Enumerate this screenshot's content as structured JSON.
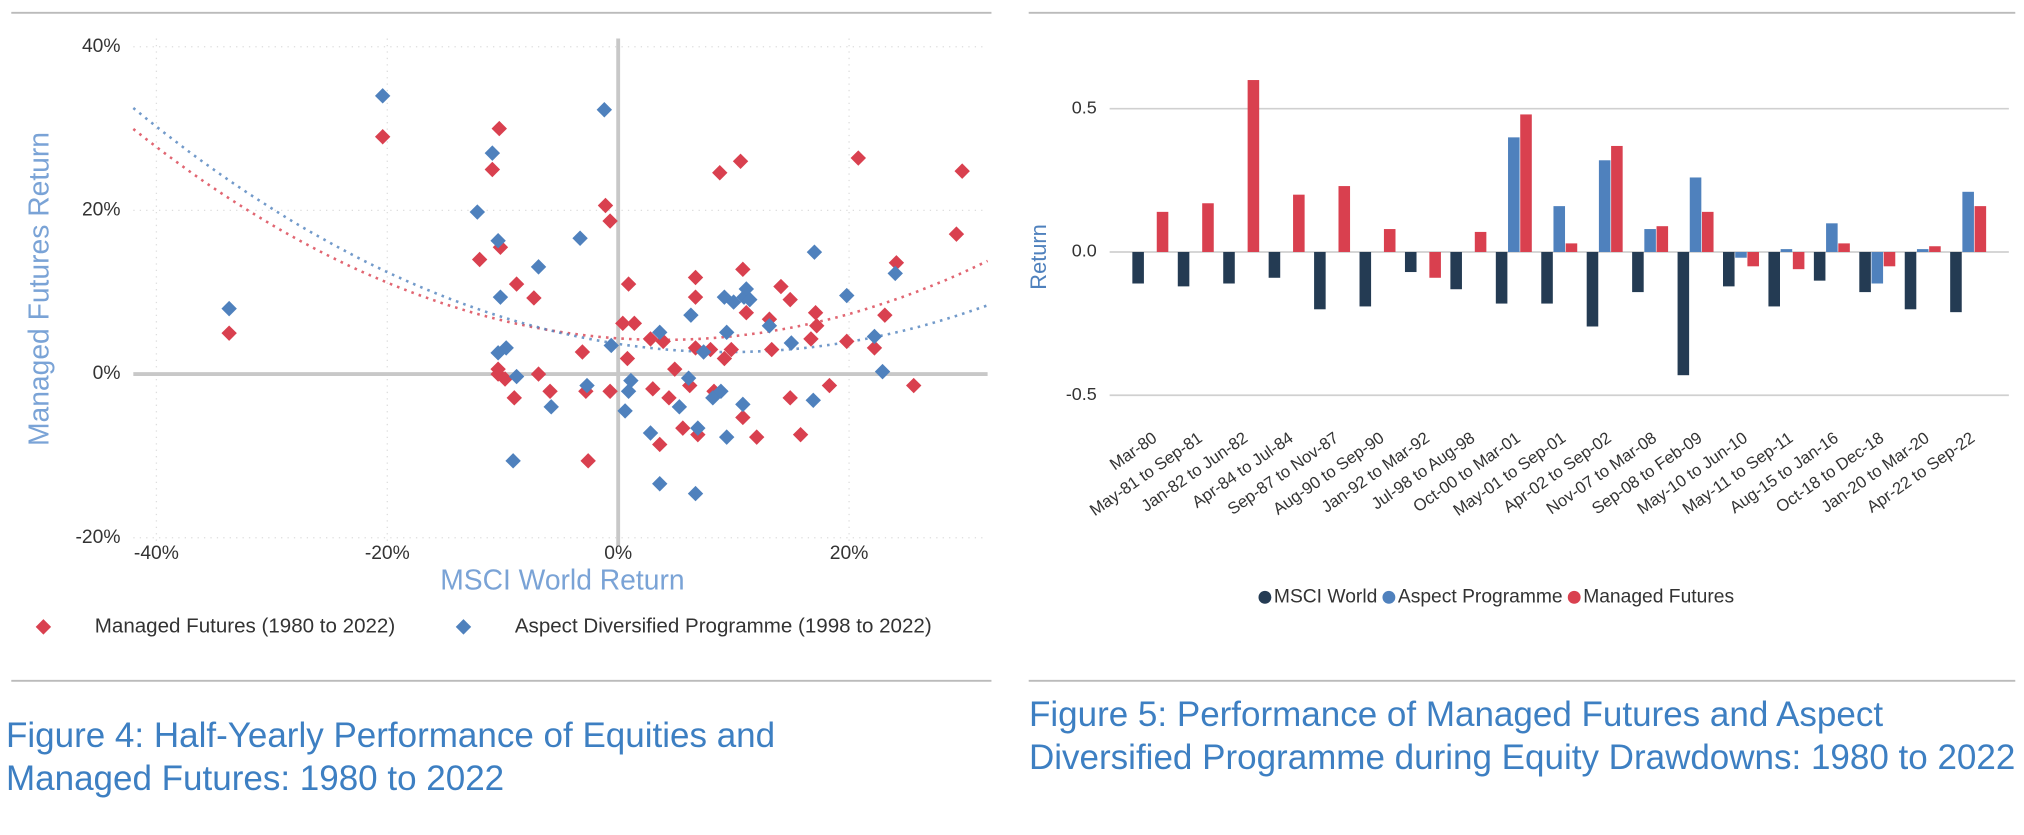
{
  "chart_data": [
    {
      "type": "scatter",
      "caption": "Figure 4: Half-Yearly Performance of Equities and Managed Futures: 1980 to 2022",
      "xlabel": "MSCI World Return",
      "ylabel": "Managed Futures Return",
      "xlim": [
        -42,
        32
      ],
      "ylim": [
        -21,
        41
      ],
      "xticks": [
        {
          "value": -40,
          "label": "-40%"
        },
        {
          "value": -20,
          "label": "-20%"
        },
        {
          "value": 0,
          "label": "0%"
        },
        {
          "value": 20,
          "label": "20%"
        }
      ],
      "yticks": [
        {
          "value": -20,
          "label": "-20%"
        },
        {
          "value": 0,
          "label": "0%"
        },
        {
          "value": 20,
          "label": "20%"
        },
        {
          "value": 40,
          "label": "40%"
        }
      ],
      "grid": true,
      "trendline": true,
      "legend": "bottom",
      "series": [
        {
          "name": "Managed Futures (1980 to 2022)",
          "color": "#d9404f",
          "x": [
            -33.7,
            -20.4,
            -10.3,
            -10.9,
            -12,
            -10.2,
            -8.8,
            -7.3,
            -10.4,
            -9.8,
            -10.4,
            -9,
            -6.9,
            -5.9,
            -3.1,
            -2.8,
            -2.6,
            -1.1,
            -0.7,
            -0.7,
            0.4,
            0.9,
            1.4,
            0.8,
            2.8,
            3,
            3.6,
            3.9,
            4.9,
            5.6,
            6.2,
            6.7,
            6.7,
            6.7,
            6.9,
            8,
            8.3,
            8.8,
            9.2,
            9.8,
            10.6,
            10.8,
            10.8,
            11.1,
            12,
            13.1,
            14.1,
            14.9,
            14.9,
            15.8,
            16.7,
            17.2,
            17.1,
            18.3,
            19.8,
            20.8,
            22.2,
            23.1,
            24.1,
            25.6,
            29.8,
            29.3,
            4.4,
            13.3
          ],
          "values": [
            5,
            29,
            30,
            25,
            14,
            15.5,
            11,
            9.3,
            0,
            -0.6,
            0.6,
            -2.9,
            0,
            -2.1,
            2.7,
            -2.1,
            -10.6,
            20.6,
            18.7,
            -2.1,
            6.2,
            11,
            6.2,
            1.9,
            4.3,
            -1.8,
            -8.6,
            4,
            0.6,
            -6.6,
            -1.4,
            11.8,
            9.4,
            3.2,
            -7.4,
            3,
            -2.1,
            24.6,
            1.9,
            3,
            26,
            12.8,
            -5.3,
            7.5,
            -7.7,
            6.7,
            10.7,
            9.1,
            -2.9,
            -7.4,
            4.3,
            5.9,
            7.5,
            -1.4,
            4,
            26.4,
            3.2,
            7.2,
            13.6,
            -1.4,
            24.8,
            17.1,
            -2.9,
            3
          ]
        },
        {
          "name": "Aspect Diversified Programme (1998 to 2022)",
          "color": "#4f81bd",
          "x": [
            -33.7,
            -20.4,
            -10.9,
            -12.2,
            -10.4,
            -10.2,
            -9.7,
            -10.4,
            -8.8,
            -9.1,
            -6.9,
            -5.8,
            -3.3,
            -2.7,
            -1.2,
            -0.6,
            0.6,
            0.9,
            1.1,
            2.8,
            3.6,
            3.6,
            5.3,
            6.1,
            6.3,
            6.7,
            6.9,
            7.4,
            8.2,
            9.2,
            9.4,
            9.4,
            10,
            10.9,
            11.1,
            10.8,
            11.4,
            13.1,
            15,
            17,
            16.9,
            19.8,
            22.2,
            22.9,
            24,
            8.9
          ],
          "values": [
            8,
            34,
            27,
            19.8,
            16.3,
            9.4,
            3.2,
            2.6,
            -0.3,
            -10.6,
            13.1,
            -4,
            16.6,
            -1.4,
            32.3,
            3.5,
            -4.5,
            -2.1,
            -0.8,
            -7.2,
            -13.4,
            5.1,
            -4,
            -0.5,
            7.2,
            -14.6,
            -6.6,
            2.7,
            -2.9,
            9.4,
            -7.7,
            5.1,
            8.8,
            9.4,
            10.4,
            -3.7,
            9.1,
            5.9,
            3.8,
            14.9,
            -3.2,
            9.6,
            4.6,
            0.3,
            12.3,
            -2.1
          ]
        }
      ]
    },
    {
      "type": "bar",
      "caption": "Figure 5: Performance of Managed Futures and Aspect Diversified Programme during Equity Drawdowns: 1980 to 2022",
      "ylabel": "Return",
      "categories": [
        "Mar-80",
        "May-81 to Sep-81",
        "Jan-82 to Jun-82",
        "Apr-84 to Jul-84",
        "Sep-87 to Nov-87",
        "Aug-90 to Sep-90",
        "Jan-92 to Mar-92",
        "Jul-98 to Aug-98",
        "Oct-00 to Mar-01",
        "May-01 to Sep-01",
        "Apr-02 to Sep-02",
        "Nov-07 to Mar-08",
        "Sep-08 to Feb-09",
        "May-10 to Jun-10",
        "May-11 to Sep-11",
        "Aug-15 to Jan-16",
        "Oct-18 to Dec-18",
        "Jan-20 to Mar-20",
        "Apr-22 to Sep-22"
      ],
      "ylim": [
        -0.6,
        0.7
      ],
      "yticks": [
        -0.5,
        {
          "value": 0,
          "label": "0.0"
        },
        0.5
      ],
      "grid": true,
      "legend": "bottom",
      "series": [
        {
          "name": "MSCI World",
          "color": "#243b53",
          "values": [
            -0.11,
            -0.12,
            -0.11,
            -0.09,
            -0.2,
            -0.19,
            -0.07,
            -0.13,
            -0.18,
            -0.18,
            -0.26,
            -0.14,
            -0.43,
            -0.12,
            -0.19,
            -0.1,
            -0.14,
            -0.2,
            -0.21
          ]
        },
        {
          "name": "Aspect Programme",
          "color": "#4f81bd",
          "values": [
            null,
            null,
            null,
            null,
            null,
            null,
            null,
            null,
            0.4,
            0.16,
            0.32,
            0.08,
            0.26,
            -0.02,
            0.01,
            0.1,
            -0.11,
            0.01,
            0.21
          ]
        },
        {
          "name": "Managed Futures",
          "color": "#d9404f",
          "values": [
            0.14,
            0.17,
            0.6,
            0.2,
            0.23,
            0.08,
            -0.09,
            0.07,
            0.48,
            0.03,
            0.37,
            0.09,
            0.14,
            -0.05,
            -0.06,
            0.03,
            -0.05,
            0.02,
            0.16
          ]
        }
      ]
    }
  ]
}
